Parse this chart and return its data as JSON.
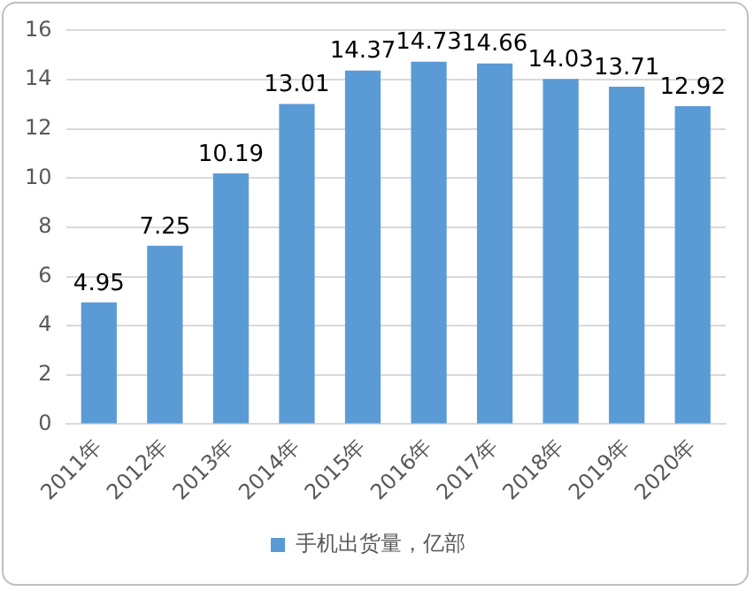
{
  "chart_data": {
    "type": "bar",
    "categories": [
      "2011年",
      "2012年",
      "2013年",
      "2014年",
      "2015年",
      "2016年",
      "2017年",
      "2018年",
      "2019年",
      "2020年"
    ],
    "series": [
      {
        "name": "手机出货量，亿部",
        "color": "#5b9bd5",
        "values": [
          4.95,
          7.25,
          10.19,
          13.01,
          14.37,
          14.73,
          14.66,
          14.03,
          13.71,
          12.92
        ]
      }
    ],
    "ylim": [
      0,
      16
    ],
    "yticks": [
      0,
      2,
      4,
      6,
      8,
      10,
      12,
      14,
      16
    ],
    "grid": "y",
    "legend": "bottom",
    "data_labels": true
  }
}
